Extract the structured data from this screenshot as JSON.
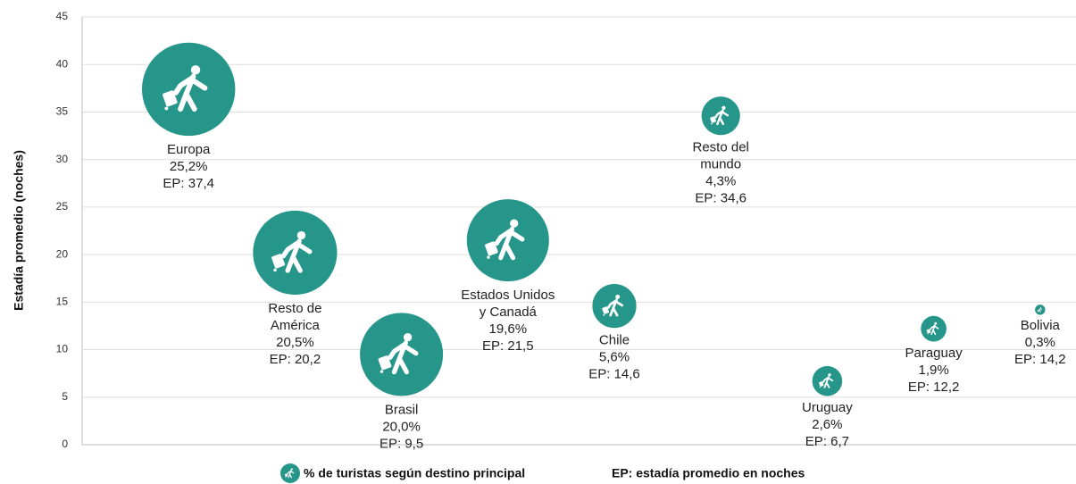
{
  "chart_data": {
    "type": "bubble",
    "y_label": "Estadía promedio (noches)",
    "categories": [
      [
        "Europa"
      ],
      [
        "Resto de",
        "América"
      ],
      [
        "Brasil"
      ],
      [
        "Estados Unidos",
        "y Canadá"
      ],
      [
        "Chile"
      ],
      [
        "Resto del",
        "mundo"
      ],
      [
        "Uruguay"
      ],
      [
        "Paraguay"
      ],
      [
        "Bolivia"
      ]
    ],
    "values": [
      37.4,
      20.2,
      9.5,
      21.5,
      14.6,
      34.6,
      6.7,
      12.2,
      14.2
    ],
    "value_labels": [
      "EP: 37,4",
      "EP: 20,2",
      "EP: 9,5",
      "EP: 21,5",
      "EP: 14,6",
      "EP: 34,6",
      "EP: 6,7",
      "EP: 12,2",
      "EP: 14,2"
    ],
    "sizes": [
      25.2,
      20.5,
      20.0,
      19.6,
      5.6,
      4.3,
      2.6,
      1.9,
      0.3
    ],
    "size_labels": [
      "25,2%",
      "20,5%",
      "20,0%",
      "19,6%",
      "5,6%",
      "4,3%",
      "2,6%",
      "1,9%",
      "0,3%"
    ],
    "color": "#26968a",
    "ylim": [
      0,
      45
    ],
    "yticks": [
      0,
      5,
      10,
      15,
      20,
      25,
      30,
      35,
      40,
      45
    ],
    "grid": true,
    "legend": [
      "% de turistas según destino principal",
      "EP: estadía promedio en noches"
    ]
  }
}
